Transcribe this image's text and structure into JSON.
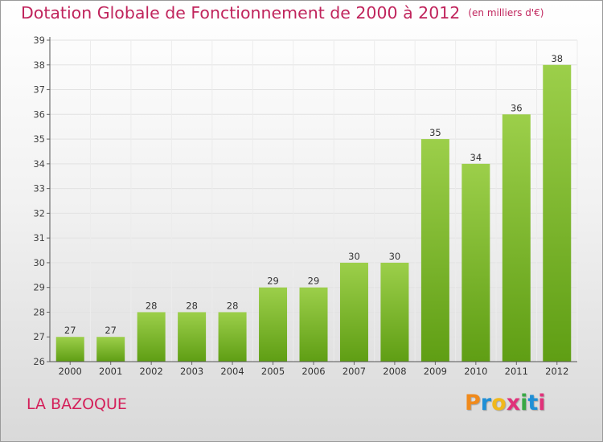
{
  "title": "Dotation Globale de Fonctionnement de 2000 à 2012",
  "unit_label": "(en milliers d'€)",
  "city": "LA BAZOQUE",
  "logo_letters": [
    "P",
    "r",
    "o",
    "x",
    "i",
    "t",
    "i"
  ],
  "logo_colors": [
    "#f08a1c",
    "#1f8fd6",
    "#f0b81c",
    "#e0327a",
    "#39a845",
    "#1f8fd6",
    "#e0327a"
  ],
  "colors": {
    "title": "#c0245c",
    "bar_top": "#9ccf4a",
    "bar_bottom": "#5f9e14"
  },
  "chart_data": {
    "type": "bar",
    "categories": [
      "2000",
      "2001",
      "2002",
      "2003",
      "2004",
      "2005",
      "2006",
      "2007",
      "2008",
      "2009",
      "2010",
      "2011",
      "2012"
    ],
    "values": [
      27,
      27,
      28,
      28,
      28,
      29,
      29,
      30,
      30,
      35,
      34,
      36,
      38
    ],
    "ylim": [
      26,
      39
    ],
    "yticks": [
      "26",
      "27",
      "28",
      "29",
      "30",
      "31",
      "32",
      "33",
      "34",
      "35",
      "36",
      "37",
      "38",
      "39"
    ],
    "grid": true,
    "xlabel": "",
    "ylabel": ""
  }
}
